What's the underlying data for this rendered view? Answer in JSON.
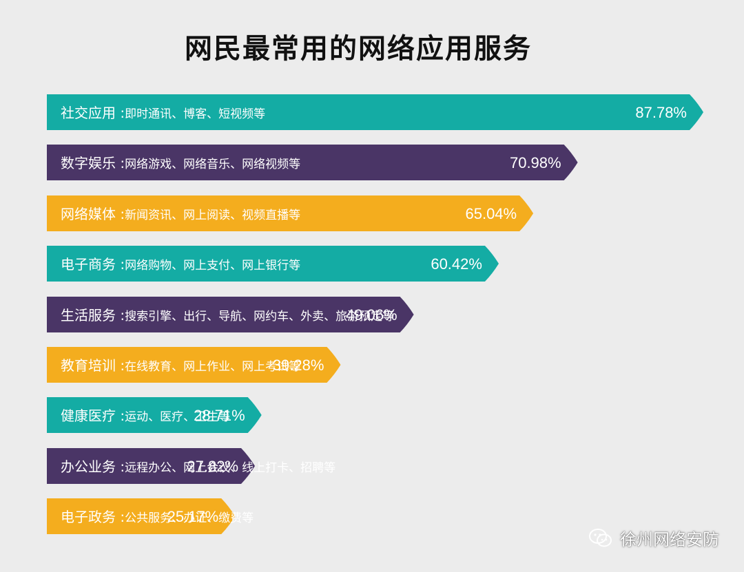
{
  "chart_data": {
    "type": "bar",
    "title": "网民最常用的网络应用服务",
    "orientation": "horizontal",
    "unit": "%",
    "xlim": [
      0,
      100
    ],
    "colors": {
      "teal": "#14aca4",
      "purple": "#4a3566",
      "orange": "#f4ad1e"
    },
    "bars": [
      {
        "category": "社交应用",
        "sep": ":",
        "desc": "即时通讯、博客、短视频等",
        "value": 87.78,
        "label": "87.78%",
        "color": "teal"
      },
      {
        "category": "数字娱乐",
        "sep": ":",
        "desc": "网络游戏、网络音乐、网络视频等",
        "value": 70.98,
        "label": "70.98%",
        "color": "purple"
      },
      {
        "category": "网络媒体",
        "sep": ":",
        "desc": "新闻资讯、网上阅读、视频直播等",
        "value": 65.04,
        "label": "65.04%",
        "color": "orange"
      },
      {
        "category": "电子商务",
        "sep": ":",
        "desc": "网络购物、网上支付、网上银行等",
        "value": 60.42,
        "label": "60.42%",
        "color": "teal"
      },
      {
        "category": "生活服务",
        "sep": ":",
        "desc": "搜索引擎、出行、导航、网约车、外卖、旅游预定等",
        "value": 49.06,
        "label": "49.06%",
        "color": "purple"
      },
      {
        "category": "教育培训",
        "sep": ":",
        "desc": "在线教育、网上作业、网上考试等",
        "value": 39.28,
        "label": "39.28%",
        "color": "orange"
      },
      {
        "category": "健康医疗",
        "sep": ":",
        "desc": "运动、医疗、卫生等",
        "value": 28.71,
        "label": "28.71%",
        "color": "teal"
      },
      {
        "category": "办公业务",
        "sep": ":",
        "desc": "远程办公、网上会议、线上打卡、招聘等",
        "value": 27.82,
        "label": "27.82%",
        "color": "purple"
      },
      {
        "category": "电子政务",
        "sep": ":",
        "desc": "公共服务、办证、缴费等",
        "value": 25.17,
        "label": "25.17%",
        "color": "orange"
      }
    ]
  },
  "watermark": {
    "text": "徐州网络安防",
    "icon": "wechat-icon"
  }
}
